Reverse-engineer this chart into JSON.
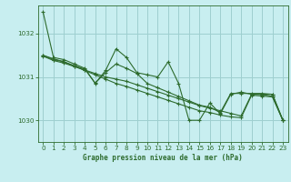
{
  "title": "Graphe pression niveau de la mer (hPa)",
  "background_color": "#c8eef0",
  "grid_color": "#9ecfcf",
  "line_color": "#2d6b2d",
  "xlim": [
    -0.5,
    23.5
  ],
  "ylim": [
    1029.5,
    1032.65
  ],
  "yticks": [
    1030,
    1031,
    1032
  ],
  "xticks": [
    0,
    1,
    2,
    3,
    4,
    5,
    6,
    7,
    8,
    9,
    10,
    11,
    12,
    13,
    14,
    15,
    16,
    17,
    18,
    19,
    20,
    21,
    22,
    23
  ],
  "series": [
    [
      1032.5,
      1031.45,
      1031.4,
      1031.3,
      1031.2,
      1030.85,
      1031.15,
      1031.65,
      1031.45,
      1031.1,
      1031.05,
      1031.0,
      1031.35,
      1030.85,
      1030.0,
      1030.0,
      1030.4,
      1030.15,
      1030.6,
      1030.65,
      1030.6,
      1030.6,
      1030.6,
      1030.0
    ],
    [
      1031.5,
      1031.4,
      1031.35,
      1031.25,
      1031.15,
      1031.05,
      1030.95,
      1030.85,
      1030.78,
      1030.7,
      1030.62,
      1030.54,
      1030.46,
      1030.38,
      1030.3,
      1030.22,
      1030.18,
      1030.12,
      1030.08,
      1030.06,
      1030.58,
      1030.56,
      1030.54,
      1030.0
    ],
    [
      1031.48,
      1031.38,
      1031.32,
      1031.24,
      1031.16,
      1031.08,
      1031.0,
      1030.95,
      1030.9,
      1030.82,
      1030.74,
      1030.66,
      1030.58,
      1030.5,
      1030.42,
      1030.34,
      1030.28,
      1030.22,
      1030.16,
      1030.1,
      1030.6,
      1030.6,
      1030.55,
      1030.0
    ],
    [
      1031.5,
      1031.42,
      1031.35,
      1031.26,
      1031.18,
      1030.86,
      1031.1,
      1031.3,
      1031.2,
      1031.08,
      1030.85,
      1030.75,
      1030.65,
      1030.55,
      1030.45,
      1030.35,
      1030.3,
      1030.18,
      1030.62,
      1030.62,
      1030.62,
      1030.62,
      1030.6,
      1030.0
    ]
  ]
}
